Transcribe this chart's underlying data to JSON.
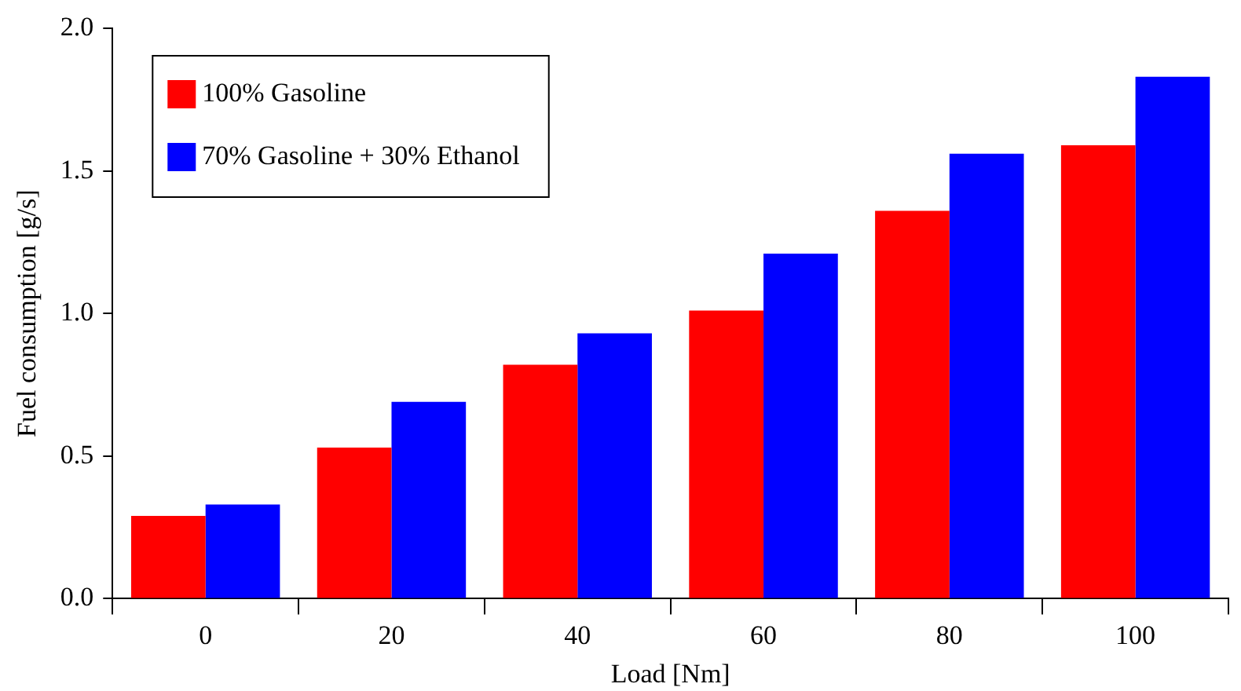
{
  "chart_data": {
    "type": "bar",
    "xlabel": "Load [Nm]",
    "ylabel": "Fuel consumption [g/s]",
    "categories": [
      "0",
      "20",
      "40",
      "60",
      "80",
      "100"
    ],
    "series": [
      {
        "name": "100% Gasoline",
        "color": "#ff0000",
        "values": [
          0.29,
          0.53,
          0.82,
          1.01,
          1.36,
          1.59
        ]
      },
      {
        "name": "70% Gasoline + 30% Ethanol",
        "color": "#0000ff",
        "values": [
          0.33,
          0.69,
          0.93,
          1.21,
          1.56,
          1.83
        ]
      }
    ],
    "ylim": [
      0,
      2
    ],
    "yticks": [
      {
        "value": 0,
        "label": "0.0"
      },
      {
        "value": 0.5,
        "label": "0.5"
      },
      {
        "value": 1,
        "label": "1.0"
      },
      {
        "value": 1.5,
        "label": "1.5"
      },
      {
        "value": 2,
        "label": "2.0"
      }
    ],
    "grid": false,
    "legend": "top left"
  }
}
